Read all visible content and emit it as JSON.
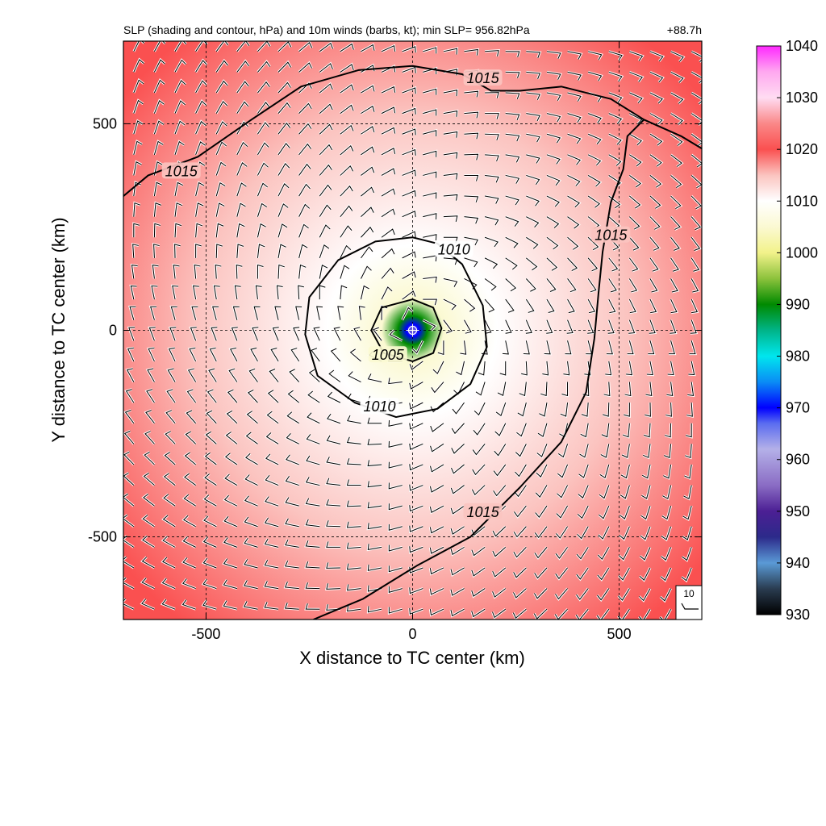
{
  "chart_data": {
    "type": "heatmap",
    "title": "SLP (shading and contour, hPa) and 10m winds (barbs, kt); min SLP= 956.82hPa",
    "time_label": "+88.7h",
    "xlabel": "X distance to TC center (km)",
    "ylabel": "Y distance to TC center (km)",
    "xlim": [
      -700,
      700
    ],
    "ylim": [
      -700,
      700
    ],
    "x_ticks": [
      {
        "value": -500,
        "label": "-500"
      },
      {
        "value": 0,
        "label": "0"
      },
      {
        "value": 500,
        "label": "500"
      }
    ],
    "y_ticks": [
      {
        "value": 500,
        "label": "500"
      },
      {
        "value": 0,
        "label": "0"
      },
      {
        "value": -500,
        "label": "-500"
      }
    ],
    "grid": true,
    "grid_style": "dashed",
    "min_slp_hpa": 956.82,
    "colorbar": {
      "range": [
        930,
        1040
      ],
      "ticks": [
        {
          "value": 1040,
          "label": "1040"
        },
        {
          "value": 1030,
          "label": "1030"
        },
        {
          "value": 1020,
          "label": "1020"
        },
        {
          "value": 1010,
          "label": "1010"
        },
        {
          "value": 1000,
          "label": "1000"
        },
        {
          "value": 990,
          "label": "990"
        },
        {
          "value": 980,
          "label": "980"
        },
        {
          "value": 970,
          "label": "970"
        },
        {
          "value": 960,
          "label": "960"
        },
        {
          "value": 950,
          "label": "950"
        },
        {
          "value": 940,
          "label": "940"
        }
      ],
      "bottom_label": "930",
      "stops": [
        {
          "value": 930,
          "color": "#000000"
        },
        {
          "value": 935,
          "color": "#2a3c50"
        },
        {
          "value": 940,
          "color": "#5a9ad6"
        },
        {
          "value": 945,
          "color": "#2c2a8a"
        },
        {
          "value": 950,
          "color": "#4c1f94"
        },
        {
          "value": 955,
          "color": "#8a6cc4"
        },
        {
          "value": 962,
          "color": "#b4b0e8"
        },
        {
          "value": 967,
          "color": "#5a6cf0"
        },
        {
          "value": 970,
          "color": "#0000ff"
        },
        {
          "value": 975,
          "color": "#0a8cf5"
        },
        {
          "value": 980,
          "color": "#00e6ee"
        },
        {
          "value": 985,
          "color": "#00b488"
        },
        {
          "value": 990,
          "color": "#008a00"
        },
        {
          "value": 995,
          "color": "#8cc23c"
        },
        {
          "value": 1000,
          "color": "#f2f28a"
        },
        {
          "value": 1005,
          "color": "#fbf9d2"
        },
        {
          "value": 1010,
          "color": "#ffffff"
        },
        {
          "value": 1015,
          "color": "#fbc4c0"
        },
        {
          "value": 1020,
          "color": "#fa5050"
        },
        {
          "value": 1025,
          "color": "#fa8888"
        },
        {
          "value": 1030,
          "color": "#ffdcf2"
        },
        {
          "value": 1035,
          "color": "#ffa8f0"
        },
        {
          "value": 1040,
          "color": "#ff28ff"
        }
      ]
    },
    "contours": [
      {
        "label": "1015",
        "points": [
          [
            -700,
            325
          ],
          [
            -640,
            375
          ],
          [
            -520,
            420
          ],
          [
            -390,
            510
          ],
          [
            -270,
            590
          ],
          [
            -130,
            630
          ],
          [
            0,
            640
          ],
          [
            120,
            620
          ],
          [
            190,
            580
          ],
          [
            260,
            580
          ],
          [
            360,
            590
          ],
          [
            480,
            560
          ],
          [
            560,
            510
          ],
          [
            650,
            470
          ],
          [
            700,
            440
          ]
        ],
        "label_positions": [
          [
            -560,
            385
          ],
          [
            170,
            610
          ]
        ]
      },
      {
        "label": "1015",
        "points": [
          [
            -240,
            -700
          ],
          [
            -120,
            -650
          ],
          [
            10,
            -570
          ],
          [
            140,
            -500
          ],
          [
            260,
            -380
          ],
          [
            360,
            -270
          ],
          [
            420,
            -150
          ],
          [
            440,
            -20
          ],
          [
            450,
            90
          ],
          [
            460,
            190
          ],
          [
            480,
            310
          ],
          [
            510,
            390
          ],
          [
            520,
            470
          ],
          [
            560,
            510
          ]
        ],
        "label_positions": [
          [
            480,
            230
          ],
          [
            170,
            -440
          ]
        ]
      },
      {
        "label": "1010",
        "points": [
          [
            0,
            225
          ],
          [
            60,
            210
          ],
          [
            120,
            160
          ],
          [
            170,
            60
          ],
          [
            180,
            -40
          ],
          [
            140,
            -130
          ],
          [
            60,
            -190
          ],
          [
            -40,
            -210
          ],
          [
            -140,
            -175
          ],
          [
            -230,
            -110
          ],
          [
            -260,
            -10
          ],
          [
            -250,
            80
          ],
          [
            -180,
            170
          ],
          [
            -90,
            215
          ],
          [
            0,
            225
          ]
        ],
        "label_positions": [
          [
            100,
            195
          ],
          [
            -80,
            -185
          ]
        ]
      },
      {
        "label": "1005",
        "points": [
          [
            0,
            75
          ],
          [
            50,
            55
          ],
          [
            70,
            5
          ],
          [
            50,
            -55
          ],
          [
            0,
            -75
          ],
          [
            -70,
            -55
          ],
          [
            -100,
            0
          ],
          [
            -75,
            55
          ],
          [
            0,
            75
          ]
        ],
        "label_positions": [
          [
            -60,
            -60
          ]
        ]
      }
    ],
    "center_slp_profile": [
      {
        "r_km": 0,
        "slp_hpa": 956.82
      },
      {
        "r_km": 15,
        "slp_hpa": 970
      },
      {
        "r_km": 35,
        "slp_hpa": 990
      },
      {
        "r_km": 75,
        "slp_hpa": 1005
      },
      {
        "r_km": 205,
        "slp_hpa": 1010
      },
      {
        "r_km": 520,
        "slp_hpa": 1015
      },
      {
        "r_km": 900,
        "slp_hpa": 1020
      }
    ],
    "wind_barbs": {
      "units": "kt",
      "spacing_km": 50,
      "circulation": "counterclockwise",
      "reference_label": "10"
    }
  }
}
